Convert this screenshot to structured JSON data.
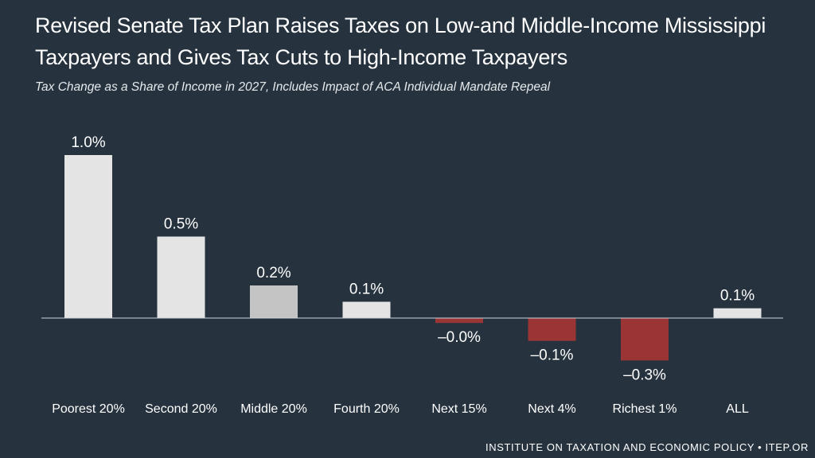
{
  "header": {
    "title": "Revised Senate Tax Plan Raises Taxes on Low-and Middle-Income Mississippi Taxpayers and Gives Tax Cuts to High-Income Taxpayers",
    "subtitle": "Tax Change as a Share of Income in 2027, Includes Impact of ACA Individual Mandate Repeal"
  },
  "footer": {
    "source": "INSTITUTE ON TAXATION AND ECONOMIC POLICY • ITEP.OR"
  },
  "colors": {
    "background": "#26333f",
    "positive_bar": "#e4e4e4",
    "highlight_bar": "#c4c4c4",
    "negative_bar": "#9b3535",
    "axis": "#cfd3d6"
  },
  "chart_data": {
    "type": "bar",
    "title": "Revised Senate Tax Plan Raises Taxes on Low-and Middle-Income Mississippi Taxpayers and Gives Tax Cuts to High-Income Taxpayers",
    "subtitle": "Tax Change as a Share of Income in 2027, Includes Impact of ACA Individual Mandate Repeal",
    "xlabel": "",
    "ylabel": "",
    "ylim": [
      -0.3,
      1.0
    ],
    "grid": false,
    "legend": "none",
    "unit": "%",
    "categories": [
      "Poorest 20%",
      "Second 20%",
      "Middle 20%",
      "Fourth 20%",
      "Next 15%",
      "Next 4%",
      "Richest 1%",
      "ALL"
    ],
    "values": [
      1.0,
      0.5,
      0.2,
      0.1,
      -0.03,
      -0.14,
      -0.26,
      0.06
    ],
    "labels": [
      "1.0%",
      "0.5%",
      "0.2%",
      "0.1%",
      "–0.0%",
      "–0.1%",
      "–0.3%",
      "0.1%"
    ]
  }
}
